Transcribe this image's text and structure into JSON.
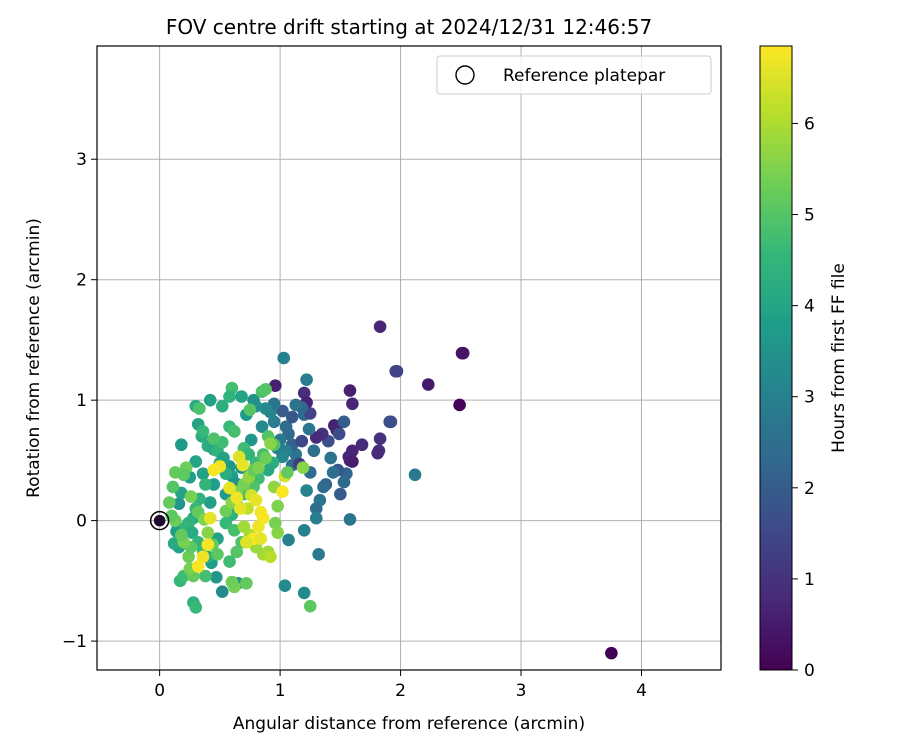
{
  "chart_data": {
    "type": "scatter",
    "title": "FOV centre drift starting at 2024/12/31 12:46:57",
    "xlabel": "Angular distance from reference (arcmin)",
    "ylabel": "Rotation from reference (arcmin)",
    "xlim": [
      -0.52,
      4.66
    ],
    "ylim": [
      -1.24,
      3.94
    ],
    "xticks": [
      0,
      1,
      2,
      3,
      4
    ],
    "yticks": [
      -1,
      0,
      1,
      2,
      3
    ],
    "xtick_labels": [
      "0",
      "1",
      "2",
      "3",
      "4"
    ],
    "ytick_labels": [
      "−1",
      "0",
      "1",
      "2",
      "3"
    ],
    "grid": true,
    "legend": {
      "placement": "top-right",
      "entries": [
        "Reference platepar"
      ]
    },
    "reference_point": {
      "x": 0,
      "y": 0
    },
    "colorbar": {
      "label": "Hours from first FF file",
      "range": [
        0,
        6.85
      ],
      "ticks": [
        0,
        1,
        2,
        3,
        4,
        5,
        6
      ],
      "tick_labels": [
        "0",
        "1",
        "2",
        "3",
        "4",
        "5",
        "6"
      ],
      "colormap": "viridis"
    },
    "colormap_stops": [
      "#440154",
      "#482878",
      "#3e4989",
      "#31688e",
      "#26828e",
      "#1f9e89",
      "#35b779",
      "#6ece58",
      "#b5de2b",
      "#fde725"
    ],
    "columns": [
      "x",
      "y",
      "hours"
    ],
    "points": [
      [
        3.75,
        -1.1,
        0.05
      ],
      [
        2.49,
        0.96,
        0.1
      ],
      [
        2.51,
        1.39,
        0.3
      ],
      [
        2.52,
        1.39,
        0.35
      ],
      [
        2.23,
        1.13,
        0.5
      ],
      [
        1.83,
        1.61,
        0.75
      ],
      [
        1.97,
        1.24,
        1.3
      ],
      [
        1.96,
        1.24,
        1.4
      ],
      [
        1.91,
        0.82,
        1.55
      ],
      [
        1.92,
        0.82,
        1.7
      ],
      [
        1.83,
        0.68,
        1.0
      ],
      [
        1.82,
        0.58,
        0.9
      ],
      [
        1.81,
        0.56,
        0.85
      ],
      [
        1.68,
        0.63,
        0.8
      ],
      [
        1.6,
        0.58,
        0.7
      ],
      [
        1.58,
        0.5,
        0.6
      ],
      [
        1.57,
        0.53,
        0.75
      ],
      [
        1.6,
        0.49,
        0.55
      ],
      [
        1.58,
        1.08,
        0.6
      ],
      [
        1.6,
        0.97,
        0.7
      ],
      [
        1.47,
        0.75,
        0.7
      ],
      [
        1.45,
        0.79,
        0.65
      ],
      [
        1.2,
        1.06,
        0.9
      ],
      [
        1.22,
        0.98,
        0.65
      ],
      [
        0.96,
        1.12,
        0.6
      ],
      [
        1.53,
        0.82,
        2.0
      ],
      [
        1.49,
        0.72,
        1.6
      ],
      [
        1.4,
        0.66,
        1.7
      ],
      [
        1.35,
        0.72,
        1.0
      ],
      [
        1.3,
        0.69,
        0.8
      ],
      [
        2.12,
        0.38,
        2.8
      ],
      [
        1.58,
        0.01,
        2.7
      ],
      [
        1.55,
        0.39,
        2.2
      ],
      [
        1.53,
        0.32,
        2.3
      ],
      [
        1.48,
        0.42,
        1.9
      ],
      [
        1.5,
        0.22,
        2.0
      ],
      [
        1.44,
        0.4,
        2.5
      ],
      [
        1.42,
        0.52,
        2.6
      ],
      [
        1.38,
        0.3,
        2.2
      ],
      [
        1.36,
        0.28,
        2.4
      ],
      [
        1.33,
        0.17,
        2.6
      ],
      [
        1.3,
        0.1,
        2.5
      ],
      [
        1.32,
        -0.28,
        2.8
      ],
      [
        1.3,
        0.02,
        2.9
      ],
      [
        1.25,
        0.4,
        2.4
      ],
      [
        1.28,
        0.58,
        2.5
      ],
      [
        1.24,
        0.76,
        2.7
      ],
      [
        1.2,
        0.88,
        2.4
      ],
      [
        1.25,
        0.89,
        1.4
      ],
      [
        1.18,
        0.94,
        2.3
      ],
      [
        1.22,
        1.17,
        2.9
      ],
      [
        1.03,
        1.35,
        3.0
      ],
      [
        1.22,
        0.25,
        3.1
      ],
      [
        1.2,
        -0.08,
        3.0
      ],
      [
        1.2,
        -0.6,
        3.3
      ],
      [
        1.04,
        -0.54,
        3.3
      ],
      [
        1.07,
        -0.16,
        3.0
      ],
      [
        1.1,
        0.46,
        2.4
      ],
      [
        1.13,
        0.55,
        2.6
      ],
      [
        1.1,
        0.63,
        2.1
      ],
      [
        1.07,
        0.72,
        2.3
      ],
      [
        1.05,
        0.78,
        2.4
      ],
      [
        1.02,
        0.91,
        2.0
      ],
      [
        1.1,
        0.86,
        1.9
      ],
      [
        1.13,
        0.96,
        2.6
      ],
      [
        1.18,
        0.66,
        1.5
      ],
      [
        1.16,
        0.47,
        1.2
      ],
      [
        1.05,
        0.58,
        3.0
      ],
      [
        1.02,
        0.53,
        3.2
      ],
      [
        0.98,
        0.6,
        3.0
      ],
      [
        1.0,
        0.67,
        2.8
      ],
      [
        0.95,
        0.82,
        2.9
      ],
      [
        0.92,
        0.9,
        3.1
      ],
      [
        0.95,
        0.97,
        2.7
      ],
      [
        0.88,
        0.93,
        3.2
      ],
      [
        0.85,
        0.78,
        3.3
      ],
      [
        0.8,
        0.95,
        3.4
      ],
      [
        0.78,
        1.0,
        3.5
      ],
      [
        0.72,
        0.88,
        3.7
      ],
      [
        0.76,
        0.67,
        3.6
      ],
      [
        0.72,
        0.56,
        3.3
      ],
      [
        0.68,
        0.44,
        3.4
      ],
      [
        0.6,
        0.37,
        3.8
      ],
      [
        0.63,
        0.31,
        3.5
      ],
      [
        0.58,
        0.45,
        3.6
      ],
      [
        0.65,
        -0.52,
        3.5
      ],
      [
        0.52,
        -0.59,
        3.3
      ],
      [
        0.47,
        -0.47,
        3.6
      ],
      [
        0.43,
        -0.35,
        3.8
      ],
      [
        0.48,
        -0.15,
        3.9
      ],
      [
        0.55,
        0.22,
        3.7
      ],
      [
        0.45,
        0.3,
        3.8
      ],
      [
        0.42,
        0.15,
        3.9
      ],
      [
        0.36,
        0.39,
        3.9
      ],
      [
        0.3,
        0.49,
        4.0
      ],
      [
        0.25,
        0.36,
        3.8
      ],
      [
        0.18,
        0.23,
        4.0
      ],
      [
        0.16,
        0.14,
        3.6
      ],
      [
        0.15,
        -0.06,
        3.9
      ],
      [
        0.14,
        -0.09,
        3.8
      ],
      [
        0.16,
        -0.22,
        3.9
      ],
      [
        0.12,
        -0.19,
        4.1
      ],
      [
        0.18,
        0.63,
        3.7
      ],
      [
        0.42,
        1.0,
        3.9
      ],
      [
        0.68,
        1.03,
        4.0
      ],
      [
        0.52,
        0.95,
        4.3
      ],
      [
        0.3,
        0.95,
        4.2
      ],
      [
        0.32,
        0.8,
        4.0
      ],
      [
        0.35,
        0.7,
        4.2
      ],
      [
        0.4,
        0.62,
        4.3
      ],
      [
        0.45,
        0.59,
        4.1
      ],
      [
        0.48,
        0.58,
        4.4
      ],
      [
        0.5,
        0.48,
        4.2
      ],
      [
        0.53,
        0.52,
        3.9
      ],
      [
        0.55,
        0.39,
        4.3
      ],
      [
        0.38,
        0.3,
        4.5
      ],
      [
        0.33,
        0.18,
        4.4
      ],
      [
        0.3,
        0.1,
        4.6
      ],
      [
        0.28,
        0.02,
        4.3
      ],
      [
        0.24,
        -0.02,
        4.4
      ],
      [
        0.22,
        -0.05,
        4.5
      ],
      [
        0.27,
        -0.1,
        4.2
      ],
      [
        0.32,
        -0.18,
        4.5
      ],
      [
        0.36,
        -0.25,
        4.6
      ],
      [
        0.4,
        -0.3,
        4.3
      ],
      [
        0.28,
        -0.68,
        4.4
      ],
      [
        0.3,
        -0.72,
        4.6
      ],
      [
        0.17,
        -0.5,
        4.5
      ],
      [
        0.2,
        -0.46,
        4.7
      ],
      [
        0.38,
        -0.46,
        4.8
      ],
      [
        0.6,
        1.1,
        4.8
      ],
      [
        0.75,
        0.92,
        5.0
      ],
      [
        0.85,
        1.07,
        4.9
      ],
      [
        0.88,
        1.09,
        5.0
      ],
      [
        0.52,
        0.65,
        4.7
      ],
      [
        0.45,
        0.68,
        4.9
      ],
      [
        0.36,
        0.74,
        4.6
      ],
      [
        0.33,
        0.93,
        4.9
      ],
      [
        0.58,
        0.78,
        4.6
      ],
      [
        0.62,
        0.74,
        4.8
      ],
      [
        0.7,
        0.6,
        4.7
      ],
      [
        0.74,
        0.55,
        4.5
      ],
      [
        0.8,
        0.48,
        4.6
      ],
      [
        0.86,
        0.55,
        4.8
      ],
      [
        0.9,
        0.7,
        5.0
      ],
      [
        0.95,
        0.63,
        4.9
      ],
      [
        0.94,
        0.48,
        4.3
      ],
      [
        0.9,
        0.42,
        4.1
      ],
      [
        0.82,
        0.35,
        4.7
      ],
      [
        0.78,
        0.28,
        4.9
      ],
      [
        0.7,
        0.22,
        4.8
      ],
      [
        0.65,
        0.12,
        4.7
      ],
      [
        0.6,
        0.05,
        4.4
      ],
      [
        0.55,
        -0.02,
        4.6
      ],
      [
        0.62,
        -0.08,
        4.8
      ],
      [
        0.68,
        -0.18,
        4.9
      ],
      [
        0.64,
        -0.26,
        5.0
      ],
      [
        0.58,
        -0.34,
        4.7
      ],
      [
        0.72,
        -0.52,
        5.2
      ],
      [
        0.62,
        -0.55,
        5.4
      ],
      [
        0.6,
        -0.51,
        5.3
      ],
      [
        0.28,
        -0.46,
        5.2
      ],
      [
        0.25,
        -0.4,
        5.4
      ],
      [
        0.24,
        -0.3,
        5.3
      ],
      [
        0.26,
        -0.22,
        5.1
      ],
      [
        0.2,
        -0.18,
        5.4
      ],
      [
        0.18,
        -0.12,
        5.2
      ],
      [
        0.13,
        0.0,
        5.3
      ],
      [
        0.1,
        0.04,
        5.1
      ],
      [
        0.08,
        0.15,
        5.2
      ],
      [
        0.11,
        0.28,
        5.0
      ],
      [
        0.13,
        0.4,
        5.2
      ],
      [
        0.22,
        0.44,
        5.3
      ],
      [
        0.2,
        0.38,
        5.1
      ],
      [
        0.26,
        0.2,
        5.4
      ],
      [
        0.32,
        0.07,
        5.2
      ],
      [
        0.37,
        0.01,
        5.5
      ],
      [
        0.4,
        -0.1,
        5.6
      ],
      [
        0.44,
        -0.2,
        5.2
      ],
      [
        0.48,
        -0.28,
        5.1
      ],
      [
        0.55,
        0.08,
        5.3
      ],
      [
        0.6,
        0.15,
        5.6
      ],
      [
        0.64,
        0.24,
        5.5
      ],
      [
        0.7,
        0.3,
        5.4
      ],
      [
        0.74,
        0.36,
        5.7
      ],
      [
        0.78,
        0.42,
        5.2
      ],
      [
        0.82,
        0.44,
        5.5
      ],
      [
        0.88,
        0.52,
        5.3
      ],
      [
        0.92,
        0.64,
        5.6
      ],
      [
        0.95,
        0.28,
        5.7
      ],
      [
        0.98,
        0.12,
        5.5
      ],
      [
        0.96,
        -0.02,
        5.4
      ],
      [
        0.98,
        -0.1,
        5.6
      ],
      [
        0.9,
        -0.26,
        5.8
      ],
      [
        0.86,
        -0.28,
        5.9
      ],
      [
        0.92,
        -0.3,
        6.1
      ],
      [
        0.8,
        -0.22,
        5.8
      ],
      [
        0.75,
        -0.12,
        6.0
      ],
      [
        0.7,
        -0.05,
        5.9
      ],
      [
        0.73,
        0.1,
        6.2
      ],
      [
        0.76,
        0.21,
        6.4
      ],
      [
        0.8,
        0.17,
        6.6
      ],
      [
        0.84,
        0.07,
        6.7
      ],
      [
        0.86,
        0.02,
        6.8
      ],
      [
        0.82,
        -0.05,
        6.7
      ],
      [
        0.78,
        -0.15,
        6.8
      ],
      [
        0.84,
        -0.15,
        6.6
      ],
      [
        0.72,
        -0.18,
        6.5
      ],
      [
        0.67,
        0.1,
        6.6
      ],
      [
        0.64,
        0.19,
        6.7
      ],
      [
        0.58,
        0.27,
        6.6
      ],
      [
        0.5,
        0.45,
        6.7
      ],
      [
        0.45,
        0.42,
        6.8
      ],
      [
        0.42,
        0.02,
        6.6
      ],
      [
        0.4,
        -0.2,
        6.8
      ],
      [
        0.36,
        -0.3,
        6.7
      ],
      [
        0.32,
        -0.38,
        6.8
      ],
      [
        0.66,
        0.53,
        6.5
      ],
      [
        0.69,
        0.46,
        6.6
      ],
      [
        1.04,
        0.37,
        6.4
      ],
      [
        1.02,
        0.24,
        6.8
      ],
      [
        1.25,
        -0.71,
        5.1
      ],
      [
        1.19,
        0.44,
        5.6
      ],
      [
        1.06,
        0.4,
        5.2
      ],
      [
        0.58,
        1.03,
        4.4
      ]
    ]
  }
}
